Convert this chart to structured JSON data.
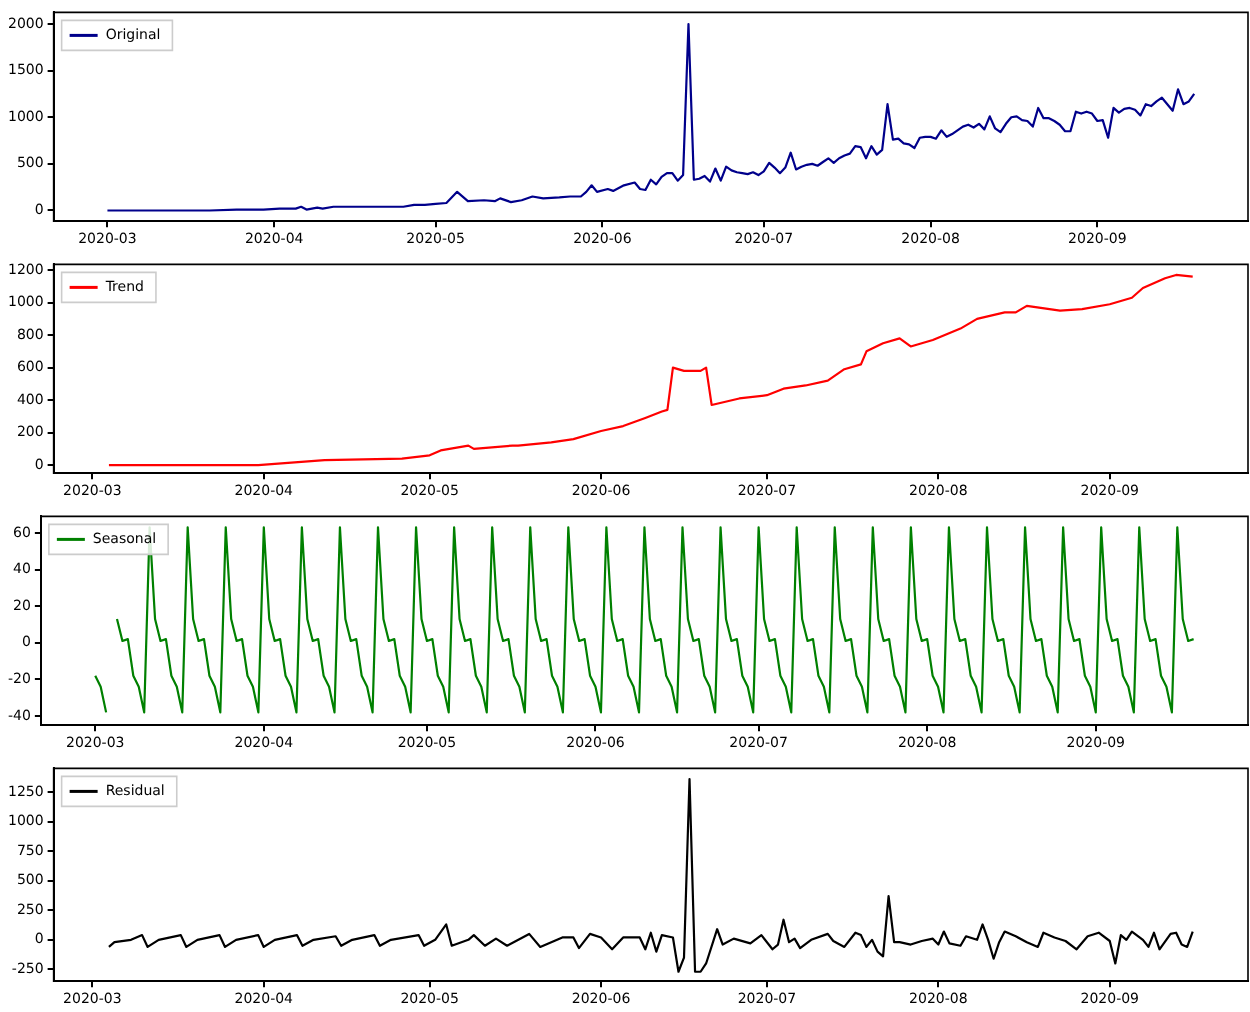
{
  "chart_data": [
    {
      "type": "line",
      "xlim": [
        "2020-02-20",
        "2020-09-29"
      ],
      "xticks": [
        "2020-03",
        "2020-04",
        "2020-05",
        "2020-06",
        "2020-07",
        "2020-08",
        "2020-09"
      ],
      "ylim": [
        -115,
        2125
      ],
      "yticks": [
        0,
        500,
        1000,
        1500,
        2000
      ],
      "legend": "top left",
      "x": [
        "2020-03-01",
        "2020-03-10",
        "2020-03-20",
        "2020-03-25",
        "2020-03-30",
        "2020-04-02",
        "2020-04-05",
        "2020-04-06",
        "2020-04-07",
        "2020-04-09",
        "2020-04-10",
        "2020-04-12",
        "2020-04-16",
        "2020-04-20",
        "2020-04-22",
        "2020-04-25",
        "2020-04-27",
        "2020-04-29",
        "2020-05-01",
        "2020-05-03",
        "2020-05-05",
        "2020-05-07",
        "2020-05-10",
        "2020-05-12",
        "2020-05-13",
        "2020-05-15",
        "2020-05-17",
        "2020-05-19",
        "2020-05-21",
        "2020-05-24",
        "2020-05-26",
        "2020-05-28",
        "2020-05-29",
        "2020-05-30",
        "2020-05-31",
        "2020-06-02",
        "2020-06-03",
        "2020-06-05",
        "2020-06-07",
        "2020-06-08",
        "2020-06-09",
        "2020-06-10",
        "2020-06-11",
        "2020-06-12",
        "2020-06-13",
        "2020-06-14",
        "2020-06-15",
        "2020-06-16",
        "2020-06-17",
        "2020-06-18",
        "2020-06-19",
        "2020-06-20",
        "2020-06-21",
        "2020-06-22",
        "2020-06-23",
        "2020-06-24",
        "2020-06-25",
        "2020-06-26",
        "2020-06-27",
        "2020-06-28",
        "2020-06-29",
        "2020-06-30",
        "2020-07-01",
        "2020-07-02",
        "2020-07-03",
        "2020-07-04",
        "2020-07-05",
        "2020-07-06",
        "2020-07-07",
        "2020-07-08",
        "2020-07-09",
        "2020-07-10",
        "2020-07-11",
        "2020-07-12",
        "2020-07-13",
        "2020-07-14",
        "2020-07-15",
        "2020-07-16",
        "2020-07-17",
        "2020-07-18",
        "2020-07-19",
        "2020-07-20",
        "2020-07-21",
        "2020-07-22",
        "2020-07-23",
        "2020-07-24",
        "2020-07-25",
        "2020-07-26",
        "2020-07-27",
        "2020-07-28",
        "2020-07-29",
        "2020-07-30",
        "2020-07-31",
        "2020-08-01",
        "2020-08-02",
        "2020-08-03",
        "2020-08-04",
        "2020-08-05",
        "2020-08-06",
        "2020-08-07",
        "2020-08-08",
        "2020-08-09",
        "2020-08-10",
        "2020-08-11",
        "2020-08-12",
        "2020-08-13",
        "2020-08-14",
        "2020-08-15",
        "2020-08-16",
        "2020-08-17",
        "2020-08-18",
        "2020-08-19",
        "2020-08-20",
        "2020-08-21",
        "2020-08-22",
        "2020-08-23",
        "2020-08-24",
        "2020-08-25",
        "2020-08-26",
        "2020-08-27",
        "2020-08-28",
        "2020-08-29",
        "2020-08-30",
        "2020-08-31",
        "2020-09-01",
        "2020-09-02",
        "2020-09-03",
        "2020-09-04",
        "2020-09-05",
        "2020-09-06",
        "2020-09-07",
        "2020-09-08",
        "2020-09-09",
        "2020-09-10",
        "2020-09-11",
        "2020-09-12",
        "2020-09-13",
        "2020-09-14",
        "2020-09-15",
        "2020-09-16",
        "2020-09-17",
        "2020-09-18",
        "2020-09-19"
      ],
      "series": [
        {
          "name": "Original",
          "color": "#00008b",
          "values": [
            0,
            0,
            0,
            10,
            10,
            20,
            20,
            40,
            10,
            30,
            20,
            40,
            40,
            40,
            40,
            40,
            60,
            60,
            70,
            80,
            200,
            100,
            110,
            100,
            130,
            90,
            110,
            150,
            130,
            140,
            150,
            150,
            200,
            270,
            200,
            230,
            210,
            270,
            300,
            230,
            220,
            330,
            280,
            360,
            400,
            400,
            320,
            380,
            2000,
            330,
            340,
            370,
            310,
            450,
            320,
            470,
            430,
            410,
            400,
            390,
            410,
            380,
            420,
            510,
            460,
            400,
            460,
            620,
            440,
            470,
            490,
            500,
            480,
            520,
            560,
            510,
            560,
            590,
            610,
            690,
            680,
            560,
            690,
            600,
            650,
            1140,
            760,
            770,
            720,
            710,
            670,
            780,
            790,
            790,
            770,
            860,
            790,
            820,
            860,
            900,
            920,
            890,
            930,
            870,
            1010,
            880,
            840,
            930,
            1000,
            1010,
            970,
            960,
            900,
            1100,
            990,
            990,
            960,
            920,
            850,
            850,
            1060,
            1040,
            1060,
            1040,
            960,
            970,
            780,
            1100,
            1050,
            1090,
            1100,
            1080,
            1020,
            1140,
            1120,
            1170,
            1210,
            1140,
            1070,
            1300,
            1140,
            1170,
            1250
          ]
        }
      ]
    },
    {
      "type": "line",
      "xlim": [
        "2020-02-23",
        "2020-09-26"
      ],
      "xticks": [
        "2020-03",
        "2020-04",
        "2020-05",
        "2020-06",
        "2020-07",
        "2020-08",
        "2020-09"
      ],
      "ylim": [
        -50,
        1235
      ],
      "yticks": [
        0,
        200,
        400,
        600,
        800,
        1000,
        1200
      ],
      "legend": "top left",
      "x": [
        "2020-03-04",
        "2020-03-20",
        "2020-03-31",
        "2020-04-12",
        "2020-04-26",
        "2020-05-01",
        "2020-05-03",
        "2020-05-08",
        "2020-05-09",
        "2020-05-16",
        "2020-05-17",
        "2020-05-23",
        "2020-05-27",
        "2020-06-01",
        "2020-06-05",
        "2020-06-09",
        "2020-06-12",
        "2020-06-13",
        "2020-06-14",
        "2020-06-16",
        "2020-06-19",
        "2020-06-20",
        "2020-06-21",
        "2020-06-26",
        "2020-07-01",
        "2020-07-04",
        "2020-07-08",
        "2020-07-12",
        "2020-07-15",
        "2020-07-18",
        "2020-07-19",
        "2020-07-22",
        "2020-07-25",
        "2020-07-27",
        "2020-07-31",
        "2020-08-05",
        "2020-08-08",
        "2020-08-13",
        "2020-08-15",
        "2020-08-17",
        "2020-08-23",
        "2020-08-27",
        "2020-09-01",
        "2020-09-05",
        "2020-09-07",
        "2020-09-11",
        "2020-09-13",
        "2020-09-16"
      ],
      "series": [
        {
          "name": "Trend",
          "color": "#ff0000",
          "values": [
            0,
            0,
            0,
            30,
            40,
            60,
            90,
            120,
            100,
            120,
            120,
            140,
            160,
            210,
            240,
            290,
            330,
            340,
            600,
            580,
            580,
            600,
            370,
            410,
            430,
            470,
            490,
            520,
            590,
            620,
            700,
            750,
            780,
            730,
            770,
            840,
            900,
            940,
            940,
            980,
            950,
            960,
            990,
            1030,
            1090,
            1150,
            1170,
            1160
          ]
        }
      ]
    },
    {
      "type": "line",
      "xlim": [
        "2020-02-20",
        "2020-09-29"
      ],
      "xticks": [
        "2020-03",
        "2020-04",
        "2020-05",
        "2020-06",
        "2020-07",
        "2020-08",
        "2020-09"
      ],
      "ylim": [
        -45,
        69
      ],
      "yticks": [
        -40,
        -20,
        0,
        20,
        40,
        60
      ],
      "legend": "top left",
      "x": [
        "2020-03-01",
        "2020-03-02",
        "2020-03-03",
        "2020-03-04",
        "2020-03-05",
        "2020-03-06",
        "2020-03-07",
        "2020-03-08",
        "2020-03-09",
        "2020-03-10",
        "2020-03-11",
        "2020-03-12",
        "2020-03-13",
        "2020-03-14",
        "2020-03-15",
        "2020-03-16",
        "2020-03-17",
        "2020-03-18",
        "2020-03-19",
        "2020-03-20",
        "2020-03-21",
        "2020-03-22",
        "2020-03-23",
        "2020-03-24",
        "2020-03-25",
        "2020-03-26",
        "2020-03-27",
        "2020-03-28",
        "2020-03-29",
        "2020-03-30",
        "2020-03-31",
        "2020-04-01",
        "2020-04-02",
        "2020-04-03",
        "2020-04-04",
        "2020-04-05",
        "2020-04-06",
        "2020-04-07",
        "2020-04-08",
        "2020-04-09",
        "2020-04-10",
        "2020-04-11",
        "2020-04-12",
        "2020-04-13",
        "2020-04-14",
        "2020-04-15",
        "2020-04-16",
        "2020-04-17",
        "2020-04-18",
        "2020-04-19",
        "2020-04-20",
        "2020-04-21",
        "2020-04-22",
        "2020-04-23",
        "2020-04-24",
        "2020-04-25",
        "2020-04-26",
        "2020-04-27",
        "2020-04-28",
        "2020-04-29",
        "2020-04-30",
        "2020-05-01",
        "2020-05-02",
        "2020-05-03",
        "2020-05-04",
        "2020-05-05",
        "2020-05-06",
        "2020-05-07",
        "2020-05-08",
        "2020-05-09",
        "2020-05-10",
        "2020-05-11",
        "2020-05-12",
        "2020-05-13",
        "2020-05-14",
        "2020-05-15",
        "2020-05-16",
        "2020-05-17",
        "2020-05-18",
        "2020-05-19",
        "2020-05-20",
        "2020-05-21",
        "2020-05-22",
        "2020-05-23",
        "2020-05-24",
        "2020-05-25",
        "2020-05-26",
        "2020-05-27",
        "2020-05-28",
        "2020-05-29",
        "2020-05-30",
        "2020-05-31",
        "2020-06-01",
        "2020-06-02",
        "2020-06-03",
        "2020-06-04",
        "2020-06-05",
        "2020-06-06",
        "2020-06-07",
        "2020-06-08",
        "2020-06-09",
        "2020-06-10",
        "2020-06-11",
        "2020-06-12",
        "2020-06-13",
        "2020-06-14",
        "2020-06-15",
        "2020-06-16",
        "2020-06-17",
        "2020-06-18",
        "2020-06-19",
        "2020-06-20",
        "2020-06-21",
        "2020-06-22",
        "2020-06-23",
        "2020-06-24",
        "2020-06-25",
        "2020-06-26",
        "2020-06-27",
        "2020-06-28",
        "2020-06-29",
        "2020-06-30",
        "2020-07-01",
        "2020-07-02",
        "2020-07-03",
        "2020-07-04",
        "2020-07-05",
        "2020-07-06",
        "2020-07-07",
        "2020-07-08",
        "2020-07-09",
        "2020-07-10",
        "2020-07-11",
        "2020-07-12",
        "2020-07-13",
        "2020-07-14",
        "2020-07-15",
        "2020-07-16",
        "2020-07-17",
        "2020-07-18",
        "2020-07-19",
        "2020-07-20",
        "2020-07-21",
        "2020-07-22",
        "2020-07-23",
        "2020-07-24",
        "2020-07-25",
        "2020-07-26",
        "2020-07-27",
        "2020-07-28",
        "2020-07-29",
        "2020-07-30",
        "2020-07-31",
        "2020-08-01",
        "2020-08-02",
        "2020-08-03",
        "2020-08-04",
        "2020-08-05",
        "2020-08-06",
        "2020-08-07",
        "2020-08-08",
        "2020-08-09",
        "2020-08-10",
        "2020-08-11",
        "2020-08-12",
        "2020-08-13",
        "2020-08-14",
        "2020-08-15",
        "2020-08-16",
        "2020-08-17",
        "2020-08-18",
        "2020-08-19",
        "2020-08-20",
        "2020-08-21",
        "2020-08-22",
        "2020-08-23",
        "2020-08-24",
        "2020-08-25",
        "2020-08-26",
        "2020-08-27",
        "2020-08-28",
        "2020-08-29",
        "2020-08-30",
        "2020-08-31",
        "2020-09-01",
        "2020-09-02",
        "2020-09-03",
        "2020-09-04",
        "2020-09-05",
        "2020-09-06",
        "2020-09-07",
        "2020-09-08",
        "2020-09-09",
        "2020-09-10",
        "2020-09-11",
        "2020-09-12",
        "2020-09-13",
        "2020-09-14",
        "2020-09-15",
        "2020-09-16",
        "2020-09-17",
        "2020-09-18",
        "2020-09-19"
      ],
      "series": [
        {
          "name": "Seasonal",
          "color": "#008000",
          "values": [
            -18,
            -24,
            -38,
            null,
            13,
            1,
            2,
            -18,
            -24,
            -38,
            63,
            13,
            1,
            2,
            -18,
            -24,
            -38,
            63,
            13,
            1,
            2,
            -18,
            -24,
            -38,
            63,
            13,
            1,
            2,
            -18,
            -24,
            -38,
            63,
            13,
            1,
            2,
            -18,
            -24,
            -38,
            63,
            13,
            1,
            2,
            -18,
            -24,
            -38,
            63,
            13,
            1,
            2,
            -18,
            -24,
            -38,
            63,
            13,
            1,
            2,
            -18,
            -24,
            -38,
            63,
            13,
            1,
            2,
            -18,
            -24,
            -38,
            63,
            13,
            1,
            2,
            -18,
            -24,
            -38,
            63,
            13,
            1,
            2,
            -18,
            -24,
            -38,
            63,
            13,
            1,
            2,
            -18,
            -24,
            -38,
            63,
            13,
            1,
            2,
            -18,
            -24,
            -38,
            63,
            13,
            1,
            2,
            -18,
            -24,
            -38,
            63,
            13,
            1,
            2,
            -18,
            -24,
            -38,
            63,
            13,
            1,
            2,
            -18,
            -24,
            -38,
            63,
            13,
            1,
            2,
            -18,
            -24,
            -38,
            63,
            13,
            1,
            2,
            -18,
            -24,
            -38,
            63,
            13,
            1,
            2,
            -18,
            -24,
            -38,
            63,
            13,
            1,
            2,
            -18,
            -24,
            -38,
            63,
            13,
            1,
            2,
            -18,
            -24,
            -38,
            63,
            13,
            1,
            2,
            -18,
            -24,
            -38,
            63,
            13,
            1,
            2,
            -18,
            -24,
            -38,
            63,
            13,
            1,
            2,
            -18,
            -24,
            -38,
            63,
            13,
            1,
            2,
            -18,
            -24,
            -38,
            63,
            13,
            1,
            2,
            -18,
            -24,
            -38,
            63,
            13,
            1,
            2,
            -18,
            -24,
            -38,
            63,
            13,
            1,
            2,
            -18,
            -24,
            -38,
            63,
            13,
            1,
            2
          ]
        }
      ]
    },
    {
      "type": "line",
      "xlim": [
        "2020-02-23",
        "2020-09-26"
      ],
      "xticks": [
        "2020-03",
        "2020-04",
        "2020-05",
        "2020-06",
        "2020-07",
        "2020-08",
        "2020-09"
      ],
      "ylim": [
        -350,
        1450
      ],
      "yticks": [
        -250,
        0,
        250,
        500,
        750,
        1000,
        1250
      ],
      "legend": "top left",
      "x": [
        "2020-03-04",
        "2020-03-05",
        "2020-03-08",
        "2020-03-10",
        "2020-03-11",
        "2020-03-13",
        "2020-03-17",
        "2020-03-18",
        "2020-03-20",
        "2020-03-24",
        "2020-03-25",
        "2020-03-27",
        "2020-03-31",
        "2020-04-01",
        "2020-04-03",
        "2020-04-07",
        "2020-04-08",
        "2020-04-10",
        "2020-04-14",
        "2020-04-15",
        "2020-04-17",
        "2020-04-21",
        "2020-04-22",
        "2020-04-24",
        "2020-04-29",
        "2020-04-30",
        "2020-05-02",
        "2020-05-04",
        "2020-05-05",
        "2020-05-08",
        "2020-05-09",
        "2020-05-11",
        "2020-05-13",
        "2020-05-15",
        "2020-05-19",
        "2020-05-21",
        "2020-05-25",
        "2020-05-27",
        "2020-05-28",
        "2020-05-30",
        "2020-06-01",
        "2020-06-03",
        "2020-06-05",
        "2020-06-08",
        "2020-06-09",
        "2020-06-10",
        "2020-06-11",
        "2020-06-12",
        "2020-06-14",
        "2020-06-15",
        "2020-06-16",
        "2020-06-17",
        "2020-06-18",
        "2020-06-19",
        "2020-06-20",
        "2020-06-22",
        "2020-06-23",
        "2020-06-25",
        "2020-06-28",
        "2020-06-30",
        "2020-07-02",
        "2020-07-03",
        "2020-07-04",
        "2020-07-05",
        "2020-07-06",
        "2020-07-07",
        "2020-07-09",
        "2020-07-12",
        "2020-07-13",
        "2020-07-15",
        "2020-07-17",
        "2020-07-18",
        "2020-07-19",
        "2020-07-20",
        "2020-07-21",
        "2020-07-22",
        "2020-07-23",
        "2020-07-24",
        "2020-07-25",
        "2020-07-27",
        "2020-07-29",
        "2020-07-31",
        "2020-08-01",
        "2020-08-02",
        "2020-08-03",
        "2020-08-05",
        "2020-08-06",
        "2020-08-08",
        "2020-08-09",
        "2020-08-10",
        "2020-08-11",
        "2020-08-12",
        "2020-08-13",
        "2020-08-15",
        "2020-08-17",
        "2020-08-19",
        "2020-08-20",
        "2020-08-22",
        "2020-08-24",
        "2020-08-26",
        "2020-08-28",
        "2020-08-30",
        "2020-09-01",
        "2020-09-02",
        "2020-09-03",
        "2020-09-04",
        "2020-09-05",
        "2020-09-07",
        "2020-09-08",
        "2020-09-09",
        "2020-09-10",
        "2020-09-12",
        "2020-09-13",
        "2020-09-14",
        "2020-09-15",
        "2020-09-16"
      ],
      "series": [
        {
          "name": "Residual",
          "color": "#000000",
          "values": [
            -60,
            -20,
            0,
            40,
            -60,
            0,
            40,
            -60,
            0,
            40,
            -60,
            0,
            40,
            -60,
            0,
            40,
            -50,
            0,
            30,
            -50,
            0,
            40,
            -50,
            0,
            40,
            -50,
            0,
            130,
            -50,
            0,
            40,
            -50,
            10,
            -50,
            50,
            -60,
            20,
            20,
            -70,
            50,
            20,
            -80,
            20,
            20,
            -80,
            60,
            -100,
            40,
            20,
            -270,
            -150,
            1360,
            -270,
            -270,
            -200,
            90,
            -40,
            10,
            -30,
            40,
            -80,
            -40,
            170,
            -20,
            10,
            -70,
            0,
            50,
            -10,
            -60,
            60,
            40,
            -60,
            0,
            -100,
            -140,
            370,
            -20,
            -20,
            -40,
            -10,
            10,
            -40,
            70,
            -30,
            -50,
            30,
            0,
            130,
            0,
            -160,
            -20,
            70,
            30,
            -20,
            -60,
            60,
            20,
            -10,
            -80,
            30,
            60,
            -10,
            -200,
            40,
            0,
            70,
            0,
            -60,
            60,
            -80,
            50,
            60,
            -40,
            -60,
            70
          ]
        }
      ]
    }
  ]
}
